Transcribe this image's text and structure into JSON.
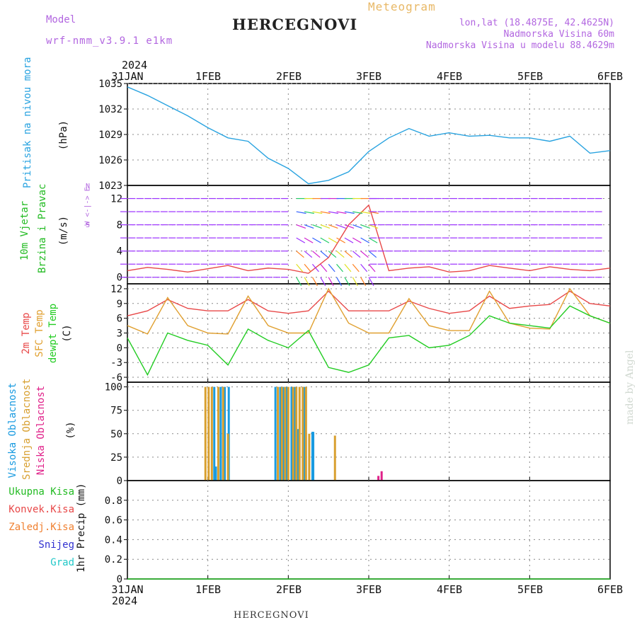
{
  "header": {
    "model_label": "Model",
    "model_name": "wrf-nmm_v3.9.1  e1km",
    "meteogram_label": "Meteogram",
    "station": "HERCEGNOVI",
    "lonlat": "lon,lat (18.4875E, 42.4625N)",
    "altitude": "Nadmorska Visina 60m",
    "model_altitude": "Nadmorska Visina u modelu 88.4629m"
  },
  "footer": {
    "station": "HERCEGNOVI",
    "watermark": "made by Angel"
  },
  "time_axis": {
    "year_top": "2024",
    "year_bottom": "2024",
    "labels": [
      "31JAN",
      "1FEB",
      "2FEB",
      "3FEB",
      "4FEB",
      "5FEB",
      "6FEB"
    ]
  },
  "panel_labels": {
    "pressure": {
      "name": "Pritisak na nivou mora",
      "unit": "(hPa)",
      "color": "#29a3e0"
    },
    "wind": {
      "name_line1": "10m Vjetar",
      "name_line2": "Brzina i Pravac",
      "unit": "(m/s)",
      "color": "#22bb22"
    },
    "wind_compass": [
      "N",
      "W <-|-> E",
      "S"
    ],
    "temp": {
      "t2m": "2m Temp",
      "sfc": "SFC Temp",
      "dewpt": "dewpt Temp",
      "unit": "(C)",
      "colors": {
        "t2m": "#e84848",
        "sfc": "#e0a030",
        "dewpt": "#22cc22"
      }
    },
    "cloud": {
      "high": "Visoka Oblacnost",
      "mid": "Srednja Oblacnost",
      "low": "Niska Oblacnost",
      "unit": "(%)",
      "colors": {
        "high": "#1a9be0",
        "mid": "#d8a030",
        "low": "#e0228a"
      }
    },
    "precip": {
      "legend": [
        {
          "label": "Ukupna Kisa",
          "color": "#22bb22"
        },
        {
          "label": "Konvek.Kisa",
          "color": "#e84848"
        },
        {
          "label": "Zaledj.Kisa",
          "color": "#f08030"
        },
        {
          "label": "Snijeg",
          "color": "#3030d0"
        },
        {
          "label": "Grad",
          "color": "#22c8c8"
        }
      ],
      "unit": "1hr Precip (mm)"
    }
  },
  "chart_data": [
    {
      "type": "line",
      "id": "pressure",
      "ylabel": "(hPa)",
      "ylim": [
        1023,
        1035
      ],
      "yticks": [
        "1023",
        "1026",
        "1029",
        "1032",
        "1035"
      ],
      "x_days": [
        0,
        0.25,
        0.5,
        0.75,
        1.0,
        1.25,
        1.5,
        1.75,
        2.0,
        2.25,
        2.5,
        2.75,
        3.0,
        3.25,
        3.5,
        3.75,
        4.0,
        4.25,
        4.5,
        4.75,
        5.0,
        5.25,
        5.5,
        5.75,
        6.0
      ],
      "series": [
        {
          "values": [
            1034.6,
            1033.6,
            1032.4,
            1031.2,
            1029.8,
            1028.6,
            1028.2,
            1026.2,
            1025.0,
            1023.2,
            1023.6,
            1024.6,
            1027.0,
            1028.6,
            1029.7,
            1028.8,
            1029.2,
            1028.8,
            1028.9,
            1028.6,
            1028.6,
            1028.2,
            1028.8,
            1026.8,
            1027.1
          ],
          "color": "#29a3e0"
        }
      ]
    },
    {
      "type": "line",
      "id": "wind",
      "ylabel": "(m/s)",
      "ylim": [
        -1,
        14
      ],
      "yticks": [
        "0",
        "4",
        "8",
        "12"
      ],
      "x_days": [
        0,
        0.25,
        0.5,
        0.75,
        1.0,
        1.25,
        1.5,
        1.75,
        2.0,
        2.25,
        2.5,
        2.75,
        3.0,
        3.25,
        3.5,
        3.75,
        4.0,
        4.25,
        4.5,
        4.75,
        5.0,
        5.25,
        5.5,
        5.75,
        6.0
      ],
      "series": [
        {
          "values": [
            1.0,
            1.5,
            1.2,
            0.8,
            1.3,
            1.8,
            1.0,
            1.4,
            1.2,
            0.6,
            3.0,
            8.0,
            11.0,
            1.0,
            1.4,
            1.6,
            0.8,
            1.0,
            1.8,
            1.4,
            1.0,
            1.6,
            1.2,
            1.0,
            1.4
          ],
          "color": "#e84848"
        }
      ]
    },
    {
      "type": "line",
      "id": "temperature",
      "ylabel": "(C)",
      "ylim": [
        -7,
        13
      ],
      "yticks": [
        "-6",
        "-3",
        "0",
        "3",
        "6",
        "9",
        "12"
      ],
      "x_days": [
        0,
        0.25,
        0.5,
        0.75,
        1.0,
        1.25,
        1.5,
        1.75,
        2.0,
        2.25,
        2.5,
        2.75,
        3.0,
        3.25,
        3.5,
        3.75,
        4.0,
        4.25,
        4.5,
        4.75,
        5.0,
        5.25,
        5.5,
        5.75,
        6.0
      ],
      "series": [
        {
          "name": "2m Temp",
          "values": [
            6.5,
            7.5,
            9.8,
            8.0,
            7.5,
            7.5,
            9.8,
            7.5,
            7.0,
            7.5,
            11.5,
            7.5,
            7.5,
            7.5,
            9.5,
            8.0,
            7.0,
            7.5,
            10.5,
            8.0,
            8.5,
            8.8,
            11.5,
            9.0,
            8.5
          ],
          "color": "#e84848"
        },
        {
          "name": "SFC Temp",
          "values": [
            4.5,
            2.8,
            10.2,
            4.5,
            3.0,
            2.8,
            10.5,
            4.5,
            3.0,
            3.0,
            12.0,
            5.0,
            3.0,
            3.0,
            10.0,
            4.5,
            3.5,
            3.5,
            11.5,
            5.0,
            4.0,
            3.8,
            12.0,
            6.5,
            5.0
          ],
          "color": "#e0a030"
        },
        {
          "name": "dewpt Temp",
          "values": [
            2.0,
            -5.5,
            3.0,
            1.5,
            0.5,
            -3.5,
            3.8,
            1.5,
            0.0,
            3.5,
            -4.0,
            -5.0,
            -3.5,
            2.0,
            2.5,
            0.0,
            0.5,
            2.5,
            6.5,
            5.0,
            4.5,
            4.0,
            8.5,
            6.5,
            5.0
          ],
          "color": "#22cc22"
        }
      ]
    },
    {
      "type": "bar",
      "id": "cloud",
      "ylabel": "(%)",
      "ylim": [
        0,
        105
      ],
      "yticks": [
        "0",
        "25",
        "50",
        "75",
        "100"
      ],
      "series": [
        {
          "name": "Visoka Oblacnost",
          "color": "#1a9be0",
          "bars": [
            [
              1.08,
              100
            ],
            [
              1.1,
              15
            ],
            [
              1.16,
              100
            ],
            [
              1.21,
              100
            ],
            [
              1.26,
              100
            ],
            [
              1.84,
              100
            ],
            [
              1.9,
              100
            ],
            [
              1.94,
              100
            ],
            [
              1.98,
              100
            ],
            [
              2.04,
              100
            ],
            [
              2.08,
              100
            ],
            [
              2.12,
              55
            ],
            [
              2.2,
              100
            ],
            [
              2.3,
              52
            ],
            [
              2.31,
              52
            ]
          ]
        },
        {
          "name": "Srednja Oblacnost",
          "color": "#d8a030",
          "bars": [
            [
              0.97,
              100
            ],
            [
              1.01,
              100
            ],
            [
              1.05,
              100
            ],
            [
              1.13,
              100
            ],
            [
              1.19,
              100
            ],
            [
              1.25,
              50
            ],
            [
              1.87,
              100
            ],
            [
              1.92,
              100
            ],
            [
              1.96,
              100
            ],
            [
              2.0,
              100
            ],
            [
              2.06,
              100
            ],
            [
              2.1,
              100
            ],
            [
              2.14,
              100
            ],
            [
              2.18,
              100
            ],
            [
              2.22,
              100
            ],
            [
              2.26,
              50
            ],
            [
              2.58,
              48
            ]
          ]
        },
        {
          "name": "Niska Oblacnost",
          "color": "#e0228a",
          "bars": [
            [
              3.12,
              5
            ],
            [
              3.16,
              10
            ]
          ]
        }
      ]
    },
    {
      "type": "line",
      "id": "precipitation",
      "ylabel": "1hr Precip (mm)",
      "ylim": [
        0,
        1
      ],
      "yticks": [
        "0",
        "0.2",
        "0.4",
        "0.6",
        "0.8"
      ],
      "series": [
        {
          "name": "Ukupna Kisa",
          "values": [
            0,
            0,
            0,
            0,
            0,
            0,
            0
          ],
          "color": "#22bb22"
        }
      ]
    }
  ]
}
